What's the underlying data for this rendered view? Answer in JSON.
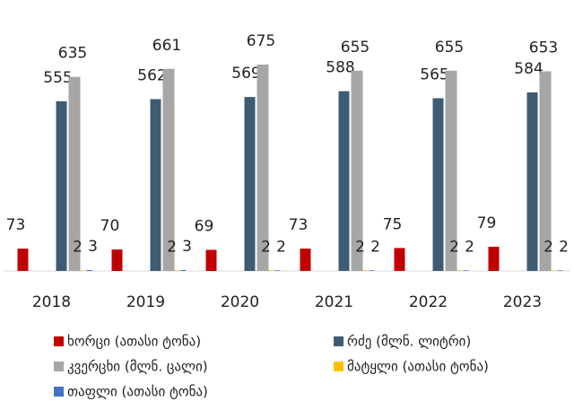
{
  "chart_data": {
    "type": "bar",
    "categories": [
      "2018",
      "2019",
      "2020",
      "2021",
      "2022",
      "2023"
    ],
    "series": [
      {
        "name": "ხორცი (ათასი ტონა)",
        "color": "#c00000",
        "values": [
          73,
          70,
          69,
          73,
          75,
          79
        ]
      },
      {
        "name": "რძე (მლნ. ლიტრი)",
        "color": "#3d5c73",
        "values": [
          555,
          562,
          569,
          588,
          565,
          584
        ]
      },
      {
        "name": "კვერცხი (მლნ. ცალი)",
        "color": "#a6a6a6",
        "values": [
          635,
          661,
          675,
          655,
          655,
          653
        ]
      },
      {
        "name": "მატყლი (ათასი ტონა)",
        "color": "#ffc000",
        "values": [
          2,
          2,
          2,
          2,
          2,
          2
        ]
      },
      {
        "name": "თაფლი (ათასი ტონა)",
        "color": "#4472c4",
        "values": [
          3,
          3,
          2,
          2,
          2,
          2
        ]
      }
    ],
    "legend": "bottom"
  }
}
